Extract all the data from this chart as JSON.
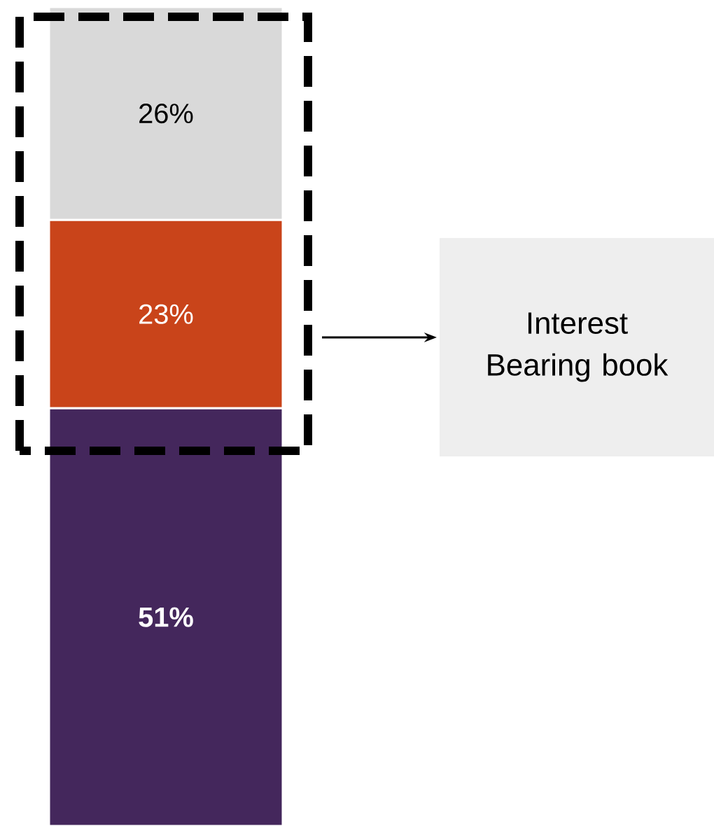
{
  "chart_data": {
    "type": "bar",
    "stacked": true,
    "categories": [
      null
    ],
    "series": [
      {
        "color": "#44275c",
        "values": [
          51
        ],
        "value_labels": [
          "**51%**"
        ]
      },
      {
        "color": "#c9441a",
        "values": [
          23
        ],
        "value_labels": [
          "23%"
        ]
      },
      {
        "color": "#d9d9d9",
        "values": [
          26
        ],
        "value_labels": [
          "26%"
        ]
      }
    ],
    "annotations": [
      "Interest Bearing book"
    ]
  }
}
